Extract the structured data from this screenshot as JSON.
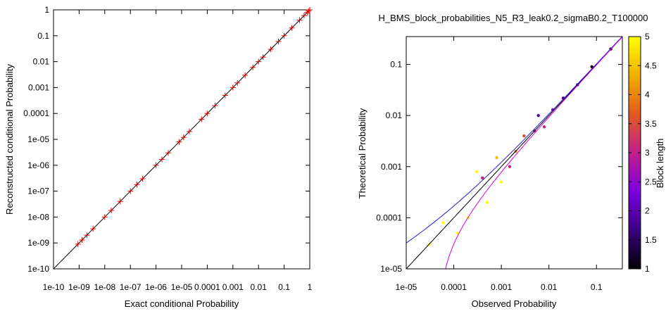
{
  "chart_data": [
    {
      "type": "scatter",
      "title": "",
      "xlabel": "Exact conditional Probability",
      "ylabel": "Reconstructed conditional Probability",
      "xscale": "log",
      "yscale": "log",
      "xlim": [
        1e-10,
        1
      ],
      "ylim": [
        1e-10,
        1
      ],
      "x_ticks": [
        "1e-10",
        "1e-09",
        "1e-08",
        "1e-07",
        "1e-06",
        "1e-05",
        "0.0001",
        "0.001",
        "0.01",
        "0.1",
        "1"
      ],
      "y_ticks": [
        "1e-10",
        "1e-09",
        "1e-08",
        "1e-07",
        "1e-06",
        "1e-05",
        "0.0001",
        "0.001",
        "0.01",
        "0.1",
        "1"
      ],
      "grid": false,
      "series": [
        {
          "marker": "plus",
          "color": "#e00000",
          "points": [
            [
              9e-10,
              9e-10
            ],
            [
              1.3e-09,
              1.3e-09
            ],
            [
              2e-09,
              2e-09
            ],
            [
              3.5e-09,
              3.5e-09
            ],
            [
              1e-08,
              1e-08
            ],
            [
              1.8e-08,
              1.8e-08
            ],
            [
              4e-08,
              4e-08
            ],
            [
              1e-07,
              1e-07
            ],
            [
              1.8e-07,
              1.8e-07
            ],
            [
              3e-07,
              3e-07
            ],
            [
              1e-06,
              1e-06
            ],
            [
              1.7e-06,
              1.7e-06
            ],
            [
              3e-06,
              3e-06
            ],
            [
              8e-06,
              8e-06
            ],
            [
              1.2e-05,
              1.2e-05
            ],
            [
              2e-05,
              2e-05
            ],
            [
              6e-05,
              6e-05
            ],
            [
              0.0001,
              0.0001
            ],
            [
              0.0002,
              0.0002
            ],
            [
              0.0005,
              0.0005
            ],
            [
              0.001,
              0.001
            ],
            [
              0.0015,
              0.0015
            ],
            [
              0.003,
              0.003
            ],
            [
              0.006,
              0.006
            ],
            [
              0.01,
              0.01
            ],
            [
              0.015,
              0.015
            ],
            [
              0.03,
              0.03
            ],
            [
              0.06,
              0.06
            ],
            [
              0.1,
              0.1
            ],
            [
              0.2,
              0.2
            ],
            [
              0.4,
              0.4
            ],
            [
              0.6,
              0.6
            ],
            [
              0.8,
              0.8
            ],
            [
              0.9,
              0.9
            ],
            [
              1,
              1
            ]
          ]
        }
      ],
      "reference_line": {
        "label": "",
        "color": "#000000",
        "from": [
          1e-10,
          1e-10
        ],
        "to": [
          1,
          1
        ]
      }
    },
    {
      "type": "scatter",
      "title": "H_BMS_block_probabilities_N5_R3_leak0.2_sigmaB0.2_T100000",
      "xlabel": "Observed Probability",
      "ylabel": "Theoretical Probability",
      "xscale": "log",
      "yscale": "log",
      "xlim": [
        1e-05,
        0.35
      ],
      "ylim": [
        1e-05,
        0.35
      ],
      "x_ticks": [
        "1e-05",
        "0.0001",
        "0.001",
        "0.01",
        "0.1"
      ],
      "y_ticks": [
        "1e-05",
        "0.0001",
        "0.001",
        "0.01",
        "0.1"
      ],
      "grid": false,
      "colorbar": {
        "label": "Block length",
        "range": [
          1,
          5
        ],
        "ticks": [
          "1",
          "1.5",
          "2",
          "2.5",
          "3",
          "3.5",
          "4",
          "4.5",
          "5"
        ],
        "colors": [
          "#000000",
          "#3a0080",
          "#7b00e0",
          "#c0208a",
          "#e05a20",
          "#f0b000",
          "#ffff00"
        ]
      },
      "series": [
        {
          "name": "",
          "marker": "dot",
          "color_by": "block length",
          "points": [
            [
              0.0002,
              0.0001,
              5
            ],
            [
              0.0005,
              0.0002,
              5
            ],
            [
              0.001,
              0.0005,
              5
            ],
            [
              0.00012,
              5e-05,
              5
            ],
            [
              3e-05,
              3e-05,
              5
            ],
            [
              6e-05,
              8e-05,
              5
            ],
            [
              0.0003,
              0.0008,
              5
            ],
            [
              0.0008,
              0.0015,
              4.5
            ],
            [
              0.002,
              0.002,
              4
            ],
            [
              0.003,
              0.004,
              3.5
            ],
            [
              0.005,
              0.005,
              3
            ],
            [
              0.008,
              0.006,
              3
            ],
            [
              0.012,
              0.013,
              2.5
            ],
            [
              0.02,
              0.022,
              2
            ],
            [
              0.04,
              0.04,
              1.5
            ],
            [
              0.08,
              0.09,
              1
            ],
            [
              0.2,
              0.2,
              1
            ],
            [
              0.0015,
              0.001,
              3
            ],
            [
              0.0004,
              0.0006,
              3
            ],
            [
              0.006,
              0.01,
              2
            ]
          ]
        }
      ],
      "lines": [
        {
          "name": "",
          "color": "#000000",
          "desc": "y = x"
        },
        {
          "name": "",
          "color": "#2020c8",
          "desc": "upper bound"
        },
        {
          "name": "",
          "color": "#e000e0",
          "desc": "lower bound"
        }
      ]
    }
  ]
}
